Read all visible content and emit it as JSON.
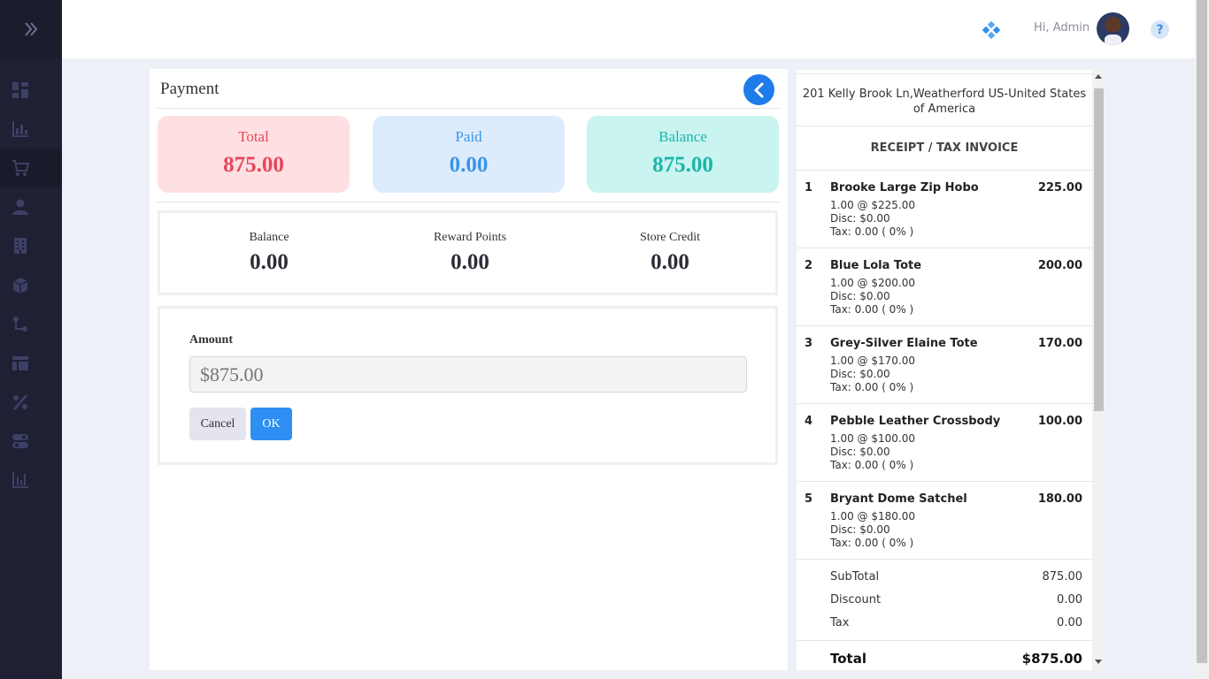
{
  "header": {
    "greeting": "Hi, Admin",
    "help_glyph": "?"
  },
  "sidebar": {
    "icons": [
      "dashboard-icon",
      "bar-chart-icon",
      "cart-icon",
      "user-icon",
      "building-icon",
      "cube-icon",
      "flow-icon",
      "table-icon",
      "percent-icon",
      "toggle-icon",
      "report-chart-icon"
    ]
  },
  "payment": {
    "title": "Payment",
    "cards": {
      "total": {
        "label": "Total",
        "value": "875.00"
      },
      "paid": {
        "label": "Paid",
        "value": "0.00"
      },
      "balance": {
        "label": "Balance",
        "value": "875.00"
      }
    },
    "summary": {
      "balance": {
        "label": "Balance",
        "value": "0.00"
      },
      "reward_points": {
        "label": "Reward Points",
        "value": "0.00"
      },
      "store_credit": {
        "label": "Store Credit",
        "value": "0.00"
      }
    },
    "amount_label": "Amount",
    "amount_placeholder": "$875.00",
    "cancel_label": "Cancel",
    "ok_label": "OK"
  },
  "receipt": {
    "address": "201 Kelly Brook Ln,Weatherford US-United States of America",
    "heading": "RECEIPT / TAX INVOICE",
    "items": [
      {
        "num": "1",
        "name": "Brooke Large Zip Hobo",
        "price": "225.00",
        "qty_line": "1.00 @ $225.00",
        "disc_line": "Disc: $0.00",
        "tax_line": "Tax: 0.00 ( 0% )"
      },
      {
        "num": "2",
        "name": "Blue Lola Tote",
        "price": "200.00",
        "qty_line": "1.00 @ $200.00",
        "disc_line": "Disc: $0.00",
        "tax_line": "Tax: 0.00 ( 0% )"
      },
      {
        "num": "3",
        "name": "Grey-Silver Elaine Tote",
        "price": "170.00",
        "qty_line": "1.00 @ $170.00",
        "disc_line": "Disc: $0.00",
        "tax_line": "Tax: 0.00 ( 0% )"
      },
      {
        "num": "4",
        "name": "Pebble Leather Crossbody",
        "price": "100.00",
        "qty_line": "1.00 @ $100.00",
        "disc_line": "Disc: $0.00",
        "tax_line": "Tax: 0.00 ( 0% )"
      },
      {
        "num": "5",
        "name": "Bryant Dome Satchel",
        "price": "180.00",
        "qty_line": "1.00 @ $180.00",
        "disc_line": "Disc: $0.00",
        "tax_line": "Tax: 0.00 ( 0% )"
      }
    ],
    "subtotal": {
      "label": "SubTotal",
      "value": "875.00"
    },
    "discount": {
      "label": "Discount",
      "value": "0.00"
    },
    "tax": {
      "label": "Tax",
      "value": "0.00"
    },
    "total": {
      "label": "Total",
      "value": "$875.00"
    }
  }
}
